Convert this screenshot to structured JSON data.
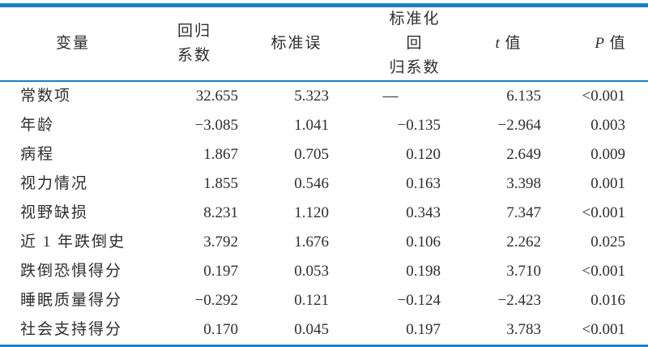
{
  "styles": {
    "rule_color": "#1b80c5",
    "text_color": "#2e2e2e",
    "background": "#ffffff"
  },
  "table": {
    "em_dash": "—",
    "columns": [
      {
        "id": "variable",
        "lines": [
          "变量"
        ]
      },
      {
        "id": "regression-coefficient",
        "lines": [
          "回归",
          "系数"
        ]
      },
      {
        "id": "standard-error",
        "lines": [
          "标准误"
        ]
      },
      {
        "id": "standardized-coefficient",
        "lines": [
          "标准化回",
          "归系数"
        ]
      },
      {
        "id": "t-value",
        "italic_var": "t",
        "lines": [
          "值"
        ]
      },
      {
        "id": "p-value",
        "italic_var": "P",
        "lines": [
          "值"
        ]
      }
    ],
    "rows": [
      [
        "常数项",
        "32.655",
        "5.323",
        "—",
        "6.135",
        "<0.001"
      ],
      [
        "年龄",
        "−3.085",
        "1.041",
        "−0.135",
        "−2.964",
        "0.003"
      ],
      [
        "病程",
        "1.867",
        "0.705",
        "0.120",
        "2.649",
        "0.009"
      ],
      [
        "视力情况",
        "1.855",
        "0.546",
        "0.163",
        "3.398",
        "0.001"
      ],
      [
        "视野缺损",
        "8.231",
        "1.120",
        "0.343",
        "7.347",
        "<0.001"
      ],
      [
        "近 1 年跌倒史",
        "3.792",
        "1.676",
        "0.106",
        "2.262",
        "0.025"
      ],
      [
        "跌倒恐惧得分",
        "0.197",
        "0.053",
        "0.198",
        "3.710",
        "<0.001"
      ],
      [
        "睡眠质量得分",
        "−0.292",
        "0.121",
        "−0.124",
        "−2.423",
        "0.016"
      ],
      [
        "社会支持得分",
        "0.170",
        "0.045",
        "0.197",
        "3.783",
        "<0.001"
      ]
    ]
  }
}
